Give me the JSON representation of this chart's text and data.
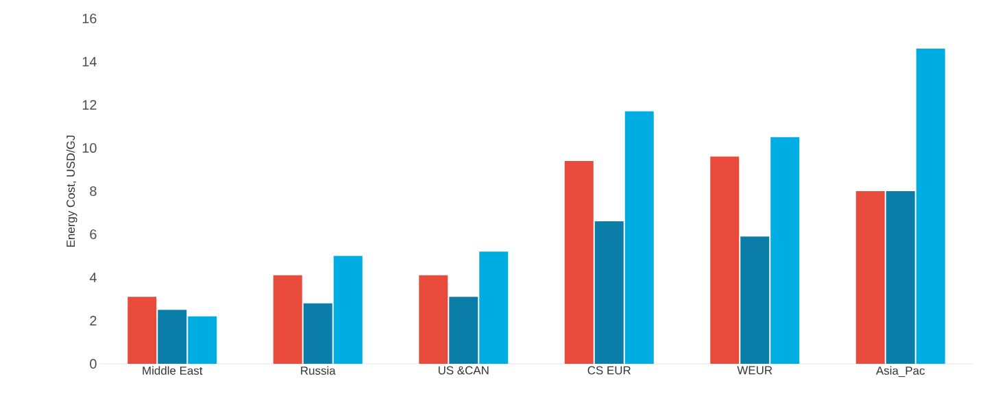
{
  "chart_data": {
    "type": "bar",
    "ylabel": "Energy Cost, USD/GJ",
    "categories": [
      "Middle East",
      "Russia",
      "US &CAN",
      "CS EUR",
      "WEUR",
      "Asia_Pac"
    ],
    "series": [
      {
        "color": "#e84b3c",
        "values": [
          3.1,
          4.1,
          4.1,
          9.4,
          9.6,
          8.0
        ]
      },
      {
        "color": "#0a7ea8",
        "values": [
          2.5,
          2.8,
          3.1,
          6.6,
          5.9,
          8.0
        ]
      },
      {
        "color": "#00ade2",
        "values": [
          2.2,
          5.0,
          5.2,
          11.7,
          10.5,
          14.6
        ]
      }
    ],
    "ylim": [
      0,
      16
    ],
    "yticks": [
      0,
      2,
      4,
      6,
      8,
      10,
      12,
      14,
      16
    ]
  }
}
